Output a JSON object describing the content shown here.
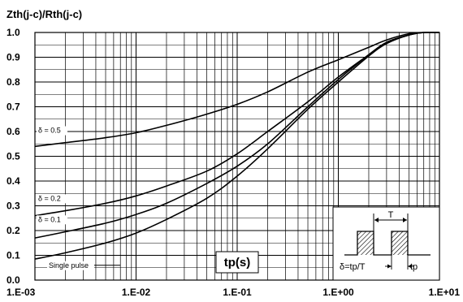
{
  "chart_data": {
    "type": "line",
    "ylabel": "Zth(j-c)/Rth(j-c)",
    "xlabel": "tp(s)",
    "x_scale": "log",
    "xlim": [
      0.001,
      10
    ],
    "ylim": [
      0,
      1.0
    ],
    "grid": true,
    "x_tick_labels": [
      "1.E-03",
      "1.E-02",
      "1.E-01",
      "1.E+00",
      "1.E+01"
    ],
    "y_tick_labels": [
      "0.0",
      "0.1",
      "0.2",
      "0.3",
      "0.4",
      "0.5",
      "0.6",
      "0.7",
      "0.8",
      "0.9",
      "1.0"
    ],
    "series": [
      {
        "name": "δ = 0.5",
        "points": [
          [
            0.001,
            0.54
          ],
          [
            0.002,
            0.555
          ],
          [
            0.005,
            0.575
          ],
          [
            0.01,
            0.595
          ],
          [
            0.02,
            0.625
          ],
          [
            0.05,
            0.67
          ],
          [
            0.1,
            0.71
          ],
          [
            0.2,
            0.76
          ],
          [
            0.5,
            0.84
          ],
          [
            1,
            0.89
          ],
          [
            2,
            0.94
          ],
          [
            3,
            0.97
          ],
          [
            5,
            0.995
          ],
          [
            7,
            1.0
          ],
          [
            10,
            1.0
          ]
        ]
      },
      {
        "name": "δ = 0.2",
        "points": [
          [
            0.001,
            0.26
          ],
          [
            0.002,
            0.28
          ],
          [
            0.005,
            0.31
          ],
          [
            0.01,
            0.34
          ],
          [
            0.02,
            0.38
          ],
          [
            0.05,
            0.44
          ],
          [
            0.1,
            0.51
          ],
          [
            0.2,
            0.6
          ],
          [
            0.5,
            0.72
          ],
          [
            1,
            0.82
          ],
          [
            2,
            0.91
          ],
          [
            3,
            0.96
          ],
          [
            5,
            0.99
          ],
          [
            7,
            1.0
          ],
          [
            10,
            1.0
          ]
        ]
      },
      {
        "name": "δ = 0.1",
        "points": [
          [
            0.001,
            0.17
          ],
          [
            0.002,
            0.195
          ],
          [
            0.005,
            0.23
          ],
          [
            0.01,
            0.265
          ],
          [
            0.02,
            0.31
          ],
          [
            0.05,
            0.39
          ],
          [
            0.1,
            0.46
          ],
          [
            0.2,
            0.55
          ],
          [
            0.5,
            0.7
          ],
          [
            1,
            0.81
          ],
          [
            2,
            0.91
          ],
          [
            3,
            0.96
          ],
          [
            5,
            0.99
          ],
          [
            7,
            1.0
          ],
          [
            10,
            1.0
          ]
        ]
      },
      {
        "name": "Single pulse",
        "points": [
          [
            0.001,
            0.085
          ],
          [
            0.002,
            0.11
          ],
          [
            0.005,
            0.15
          ],
          [
            0.01,
            0.19
          ],
          [
            0.02,
            0.245
          ],
          [
            0.05,
            0.33
          ],
          [
            0.1,
            0.42
          ],
          [
            0.2,
            0.53
          ],
          [
            0.5,
            0.69
          ],
          [
            1,
            0.8
          ],
          [
            2,
            0.905
          ],
          [
            3,
            0.955
          ],
          [
            5,
            0.99
          ],
          [
            7,
            1.0
          ],
          [
            10,
            1.0
          ]
        ]
      }
    ],
    "inset": {
      "period_label": "T",
      "formula_label": "δ=tp/T",
      "pulse_label": "tp"
    }
  }
}
